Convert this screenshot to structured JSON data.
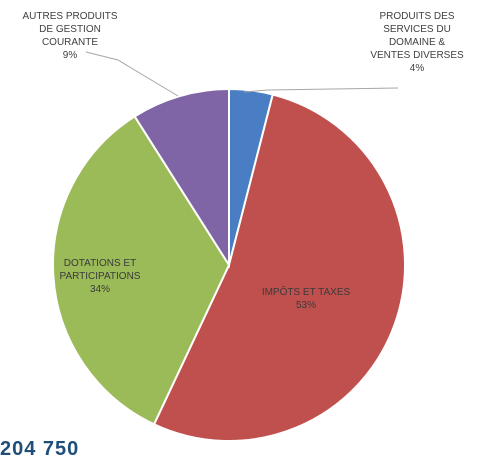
{
  "chart_data": {
    "type": "pie",
    "title": "",
    "slices": [
      {
        "label": "Produits des services du domaine & ventes diverses",
        "value": 4,
        "pct_label": "4%",
        "color": "#4a7ec4"
      },
      {
        "label": "Impôts et taxes",
        "value": 53,
        "pct_label": "53%",
        "color": "#c0504d"
      },
      {
        "label": "Dotations et participations",
        "value": 34,
        "pct_label": "34%",
        "color": "#9bbb59"
      },
      {
        "label": "Autres produits de gestion courante",
        "value": 9,
        "pct_label": "9%",
        "color": "#7f65a6"
      }
    ],
    "start_angle_deg": 0,
    "direction": "clockwise",
    "slice_border_color": "#ffffff"
  },
  "labels": {
    "services": {
      "lines": [
        "PRODUITS DES",
        "SERVICES DU",
        "DOMAINE &",
        "VENTES DIVERSES"
      ],
      "pct": "4%"
    },
    "impots": {
      "lines": [
        "IMPÔTS ET TAXES"
      ],
      "pct": "53%"
    },
    "dotations": {
      "lines": [
        "DOTATIONS ET",
        "PARTICIPATIONS"
      ],
      "pct": "34%"
    },
    "autres": {
      "lines": [
        "AUTRES PRODUITS",
        "DE GESTION",
        "COURANTE"
      ],
      "pct": "9%"
    }
  },
  "footer_text": "204 750"
}
